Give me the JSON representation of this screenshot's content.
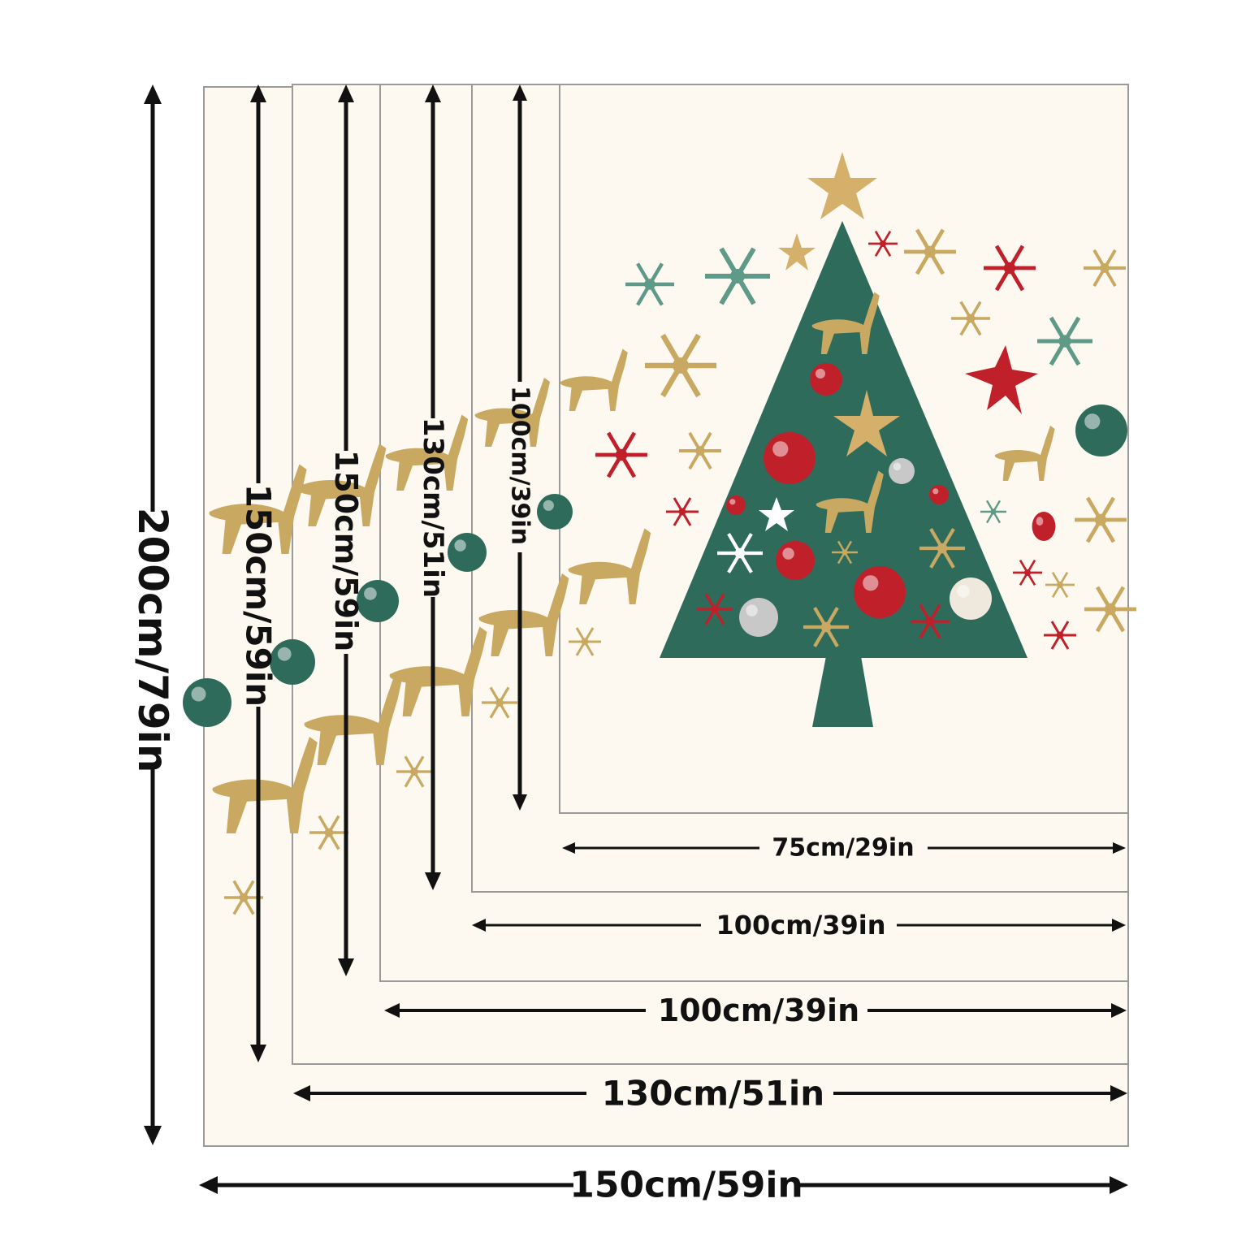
{
  "sizes": {
    "width_labels": [
      "75cm/29in",
      "100cm/39in",
      "100cm/39in",
      "130cm/51in",
      "150cm/59in"
    ],
    "height_labels": [
      "100cm/39in",
      "130cm/51in",
      "150cm/59in",
      "150cm/59in",
      "200cm/79in"
    ]
  },
  "colors": {
    "background": "#fdf9f0",
    "tree": "#2f6b5b",
    "red": "#c0202a",
    "gold": "#c9a961",
    "frame": "#9a9a9a",
    "arrow": "#111111"
  },
  "illustration": {
    "subject": "christmas-tree-with-reindeer-and-snowflakes"
  }
}
